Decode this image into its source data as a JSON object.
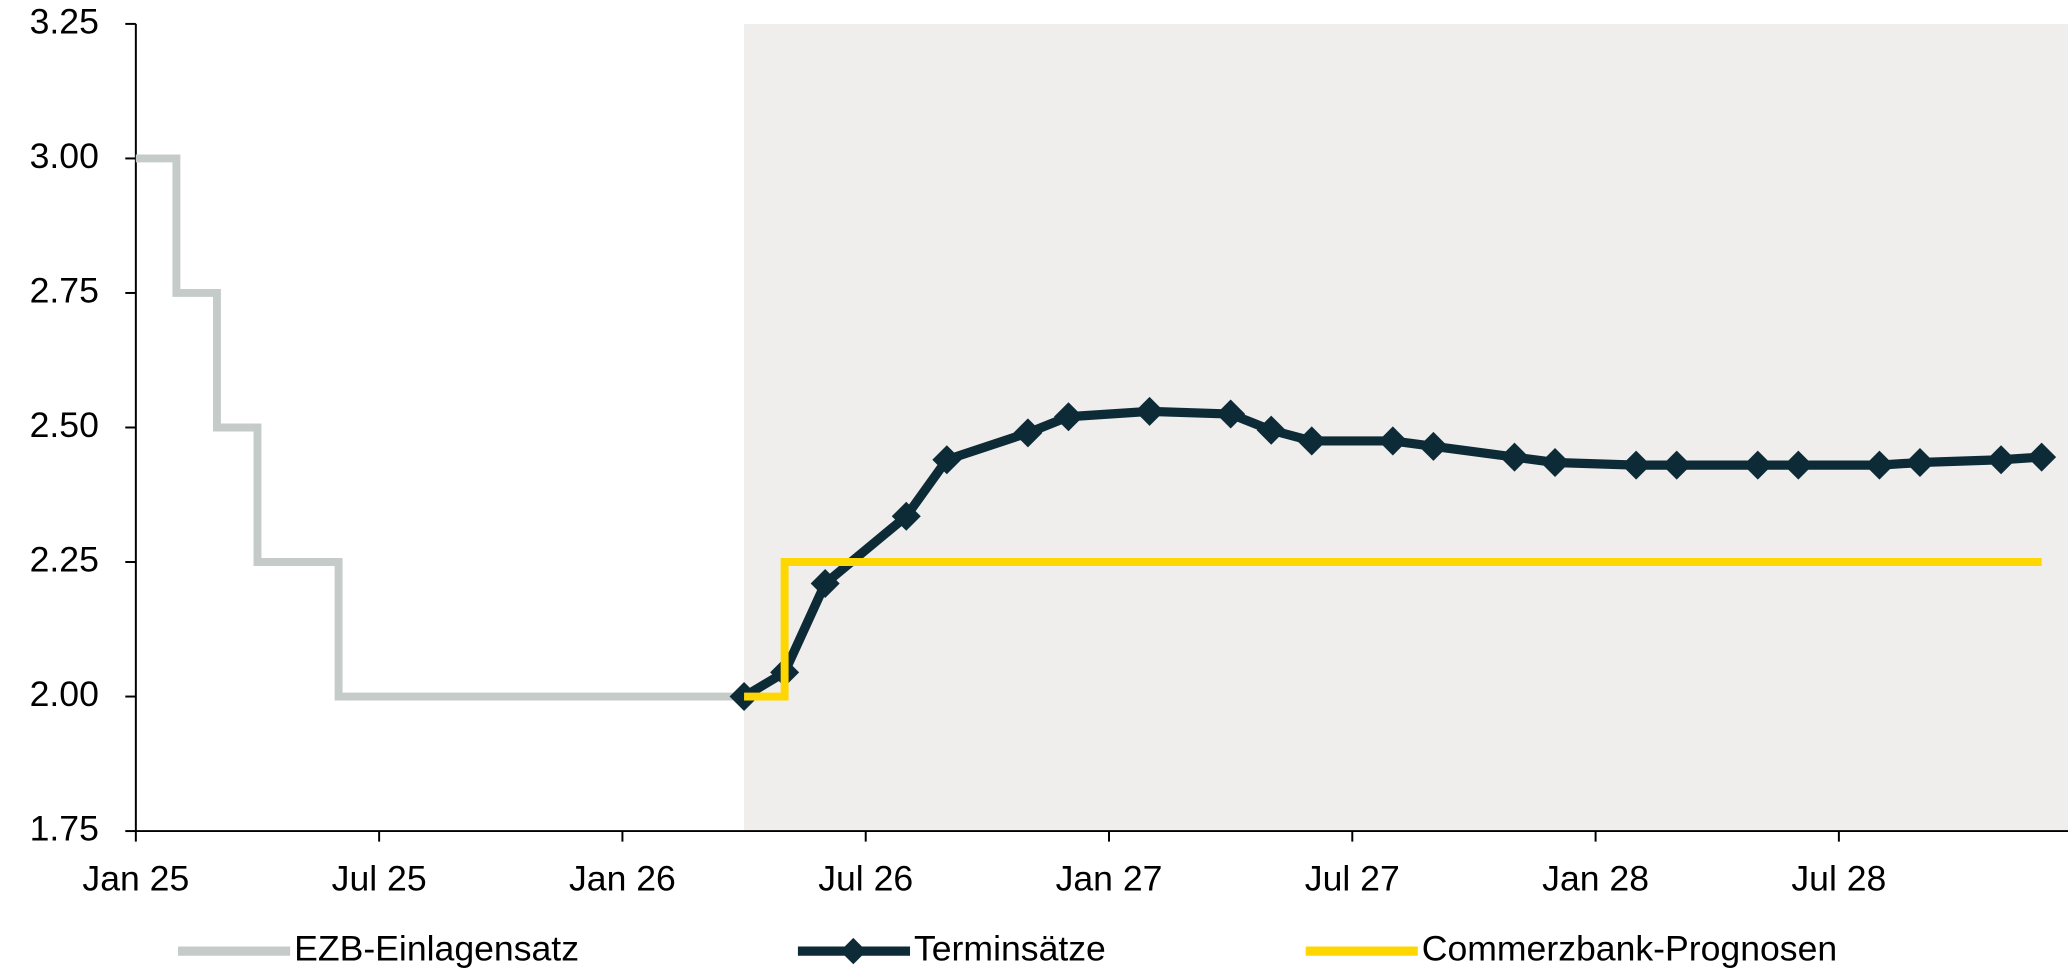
{
  "chart_data": {
    "type": "line",
    "xlim": [
      "2025-01",
      "2028-12"
    ],
    "xticks": [
      {
        "value": "2025-01",
        "label": "Jan 25"
      },
      {
        "value": "2025-07",
        "label": "Jul 25"
      },
      {
        "value": "2026-01",
        "label": "Jan 26"
      },
      {
        "value": "2026-07",
        "label": "Jul 26"
      },
      {
        "value": "2027-01",
        "label": "Jan 27"
      },
      {
        "value": "2027-07",
        "label": "Jul 27"
      },
      {
        "value": "2028-01",
        "label": "Jan 28"
      },
      {
        "value": "2028-07",
        "label": "Jul 28"
      }
    ],
    "ylim": [
      1.75,
      3.25
    ],
    "yticks": [
      {
        "value": 1.75,
        "label": "1.75"
      },
      {
        "value": 2,
        "label": "2.00"
      },
      {
        "value": 2.25,
        "label": "2.25"
      },
      {
        "value": 2.5,
        "label": "2.50"
      },
      {
        "value": 2.75,
        "label": "2.75"
      },
      {
        "value": 3,
        "label": "3.00"
      },
      {
        "value": 3.25,
        "label": "3.25"
      }
    ],
    "shaded_from": "2026-04",
    "shade_color": "#efeeec",
    "legend": "bottom",
    "series": [
      {
        "name": "EZB-Einlagensatz",
        "color": "#c5cbc8",
        "step": true,
        "markers": false,
        "x": [
          "2025-01",
          "2025-02",
          "2025-03",
          "2025-04",
          "2025-06",
          "2026-04"
        ],
        "values": [
          3.0,
          2.75,
          2.5,
          2.25,
          2.0,
          2.0
        ]
      },
      {
        "name": "Terminsätze",
        "color": "#0d2b36",
        "step": false,
        "markers": true,
        "x": [
          "2026-04",
          "2026-05",
          "2026-06",
          "2026-08",
          "2026-09",
          "2026-11",
          "2026-12",
          "2027-02",
          "2027-04",
          "2027-05",
          "2027-06",
          "2027-08",
          "2027-09",
          "2027-11",
          "2027-12",
          "2028-02",
          "2028-03",
          "2028-05",
          "2028-06",
          "2028-08",
          "2028-09",
          "2028-11",
          "2028-12"
        ],
        "values": [
          2.0,
          2.045,
          2.21,
          2.335,
          2.44,
          2.49,
          2.52,
          2.53,
          2.525,
          2.495,
          2.475,
          2.475,
          2.465,
          2.445,
          2.435,
          2.43,
          2.43,
          2.43,
          2.43,
          2.43,
          2.435,
          2.44,
          2.445
        ]
      },
      {
        "name": "Commerzbank-Prognosen",
        "color": "#ffd700",
        "step": true,
        "markers": false,
        "x": [
          "2026-04",
          "2026-05",
          "2028-12"
        ],
        "values": [
          2.0,
          2.25,
          2.25
        ]
      }
    ]
  }
}
